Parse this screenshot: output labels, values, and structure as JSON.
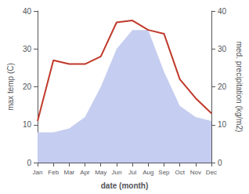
{
  "chart_data": {
    "type": "line",
    "xlabel": "date (month)",
    "ylabel": "max temp (C)",
    "y2label": "med. precipitation (kg/m2)",
    "categories": [
      "Jan",
      "Feb",
      "Mar",
      "Apr",
      "May",
      "Jun",
      "Jul",
      "Aug",
      "Sep",
      "Oct",
      "Nov",
      "Dec"
    ],
    "series": [
      {
        "type": "area",
        "color": "#c5cef0",
        "axis": "y2",
        "values": [
          8,
          8,
          9,
          12,
          20,
          30,
          35,
          35,
          24,
          15,
          12,
          11
        ]
      },
      {
        "type": "line",
        "color": "#c0392b",
        "values": [
          11,
          27,
          26,
          26,
          28,
          37,
          37.5,
          35,
          34,
          22,
          17,
          13
        ]
      }
    ],
    "ylim": [
      0,
      40
    ],
    "yticks": [
      0,
      10,
      20,
      30,
      40
    ],
    "y2lim": [
      0,
      40
    ],
    "y2ticks": [
      0,
      10,
      20,
      30,
      40
    ],
    "grid": false
  }
}
